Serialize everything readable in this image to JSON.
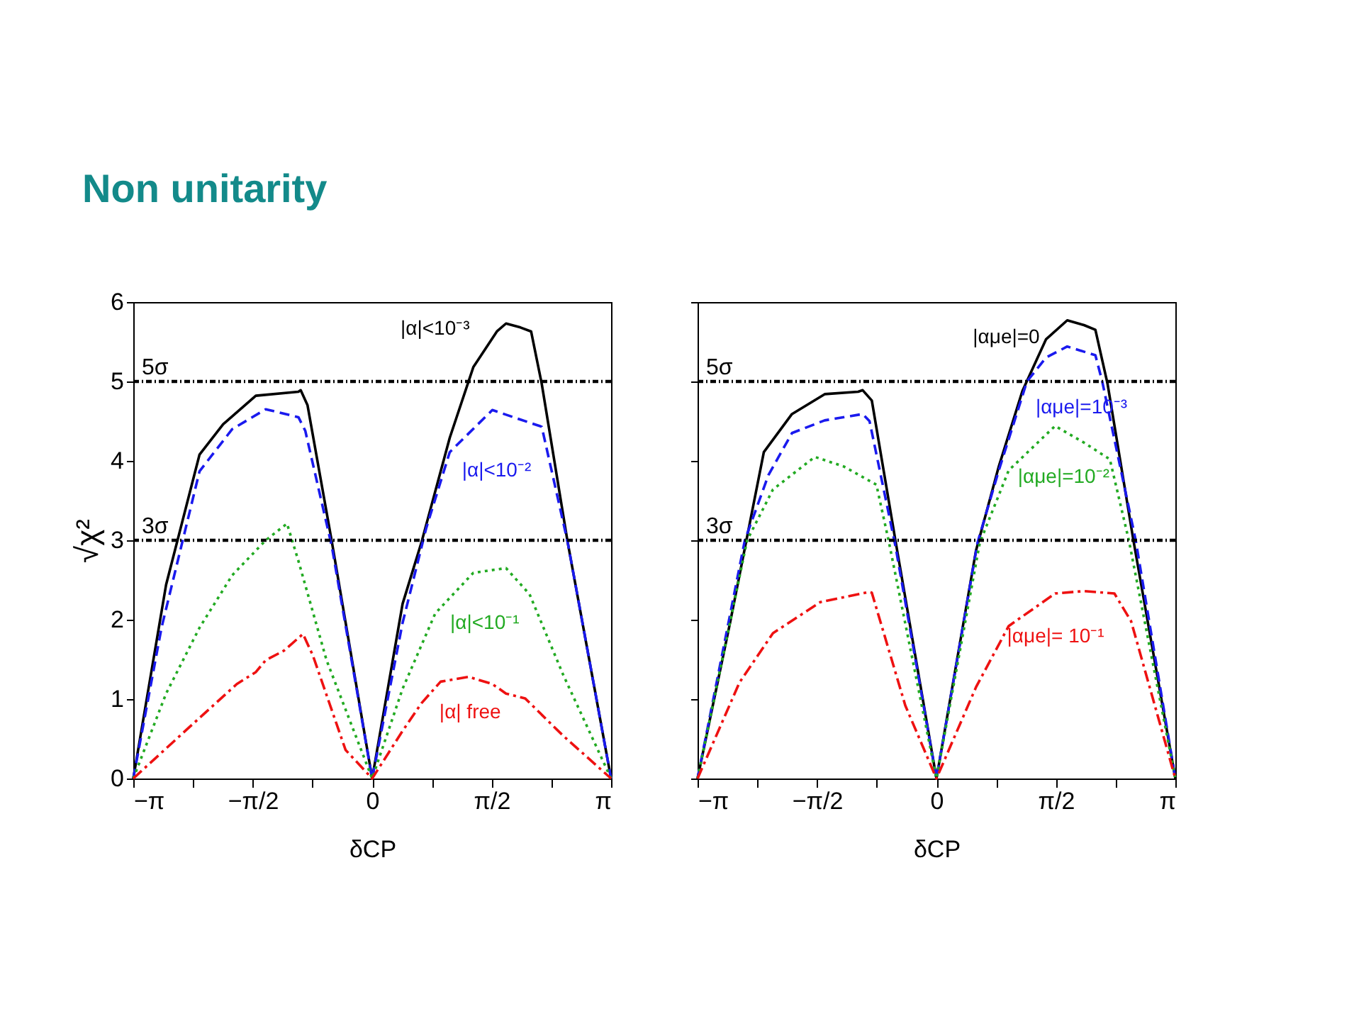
{
  "chart_data": [
    {
      "type": "line",
      "title": "Non unitarity",
      "xlabel": "δCP",
      "ylabel": "√χ²",
      "xlim": [
        -3.1416,
        3.1416
      ],
      "ylim": [
        0,
        6
      ],
      "xticks": [
        {
          "value": -3.1416,
          "label": "−π"
        },
        {
          "value": -2.3562,
          "label": null
        },
        {
          "value": -1.5708,
          "label": "−π/2"
        },
        {
          "value": -0.7854,
          "label": null
        },
        0,
        {
          "value": 0.7854,
          "label": null
        },
        {
          "value": 1.5708,
          "label": "π/2"
        },
        {
          "value": 2.3562,
          "label": null
        },
        {
          "value": 3.1416,
          "label": "π"
        }
      ],
      "yticks": [
        0,
        1,
        2,
        3,
        4,
        5,
        6
      ],
      "grid": false,
      "x": [
        -3.1416,
        -2.71,
        -2.27,
        -1.96,
        -1.53,
        -0.97,
        -0.94,
        -0.85,
        -0.53,
        0,
        0.4,
        0.65,
        1.02,
        1.33,
        1.64,
        1.76,
        1.95,
        2.09,
        2.23,
        2.57,
        3.1416
      ],
      "series": [
        {
          "name": "|α|<10⁻³",
          "color": "#000000",
          "line_style": "solid",
          "values": [
            0,
            2.44,
            4.08,
            4.46,
            4.82,
            4.87,
            4.89,
            4.7,
            2.98,
            0,
            2.2,
            2.98,
            4.29,
            5.18,
            5.63,
            5.73,
            5.68,
            5.63,
            4.97,
            2.98,
            0
          ]
        },
        {
          "name": "|α|<10⁻²",
          "color": "#1a1aee",
          "line_style": "dashed",
          "x": [
            -3.1416,
            -2.77,
            -2.27,
            -1.84,
            -1.4,
            -0.97,
            -0.88,
            -0.53,
            0,
            0.4,
            0.71,
            1.02,
            1.58,
            1.95,
            2.23,
            2.57,
            3.1416
          ],
          "values": [
            0,
            1.9,
            3.87,
            4.4,
            4.65,
            4.55,
            4.38,
            2.92,
            0,
            1.96,
            3.15,
            4.11,
            4.64,
            4.52,
            4.43,
            2.98,
            0
          ]
        },
        {
          "name": "|α|<10⁻¹",
          "color": "#22aa22",
          "line_style": "dotted",
          "x": [
            -3.1416,
            -2.71,
            -2.27,
            -1.84,
            -1.4,
            -1.12,
            -0.97,
            -0.6,
            0,
            0.4,
            0.83,
            1.33,
            1.76,
            2.07,
            2.51,
            3.1416
          ],
          "values": [
            0,
            1.07,
            1.9,
            2.56,
            3.0,
            3.21,
            2.74,
            1.49,
            0,
            1.13,
            2.08,
            2.59,
            2.65,
            2.32,
            1.31,
            0
          ]
        },
        {
          "name": "|α| free",
          "color": "#ee1111",
          "line_style": "dashdot",
          "x": [
            -3.1416,
            -2.4,
            -1.78,
            -1.53,
            -1.4,
            -1.16,
            -0.91,
            -0.78,
            -0.35,
            0,
            0.4,
            0.65,
            0.9,
            1.27,
            1.58,
            1.76,
            2.01,
            2.51,
            3.1416
          ],
          "values": [
            0,
            0.65,
            1.19,
            1.34,
            1.49,
            1.61,
            1.82,
            1.55,
            0.36,
            0,
            0.6,
            0.95,
            1.22,
            1.28,
            1.19,
            1.07,
            1.01,
            0.54,
            0
          ]
        }
      ],
      "ref_lines": [
        {
          "axis": "y",
          "value": 5,
          "label": "5σ"
        },
        {
          "axis": "y",
          "value": 3,
          "label": "3σ"
        }
      ]
    },
    {
      "type": "line",
      "xlabel": "δCP",
      "xlim": [
        -3.1416,
        3.1416
      ],
      "ylim": [
        0,
        6
      ],
      "xticks": [
        {
          "value": -3.1416,
          "label": "−π"
        },
        {
          "value": -2.3562,
          "label": null
        },
        {
          "value": -1.5708,
          "label": "−π/2"
        },
        {
          "value": -0.7854,
          "label": null
        },
        0,
        {
          "value": 0.7854,
          "label": null
        },
        {
          "value": 1.5708,
          "label": "π/2"
        },
        {
          "value": 2.3562,
          "label": null
        },
        {
          "value": 3.1416,
          "label": "π"
        }
      ],
      "yticks": [
        0,
        1,
        2,
        3,
        4,
        5,
        6
      ],
      "tick_labels": "x",
      "grid": false,
      "series": [
        {
          "name": "|αμe|=0",
          "color": "#000000",
          "line_style": "solid",
          "x": [
            -3.1416,
            -2.71,
            -2.27,
            -1.9,
            -1.47,
            -1.03,
            -0.97,
            -0.85,
            -0.54,
            0,
            0.52,
            0.82,
            1.13,
            1.44,
            1.72,
            1.94,
            2.09,
            2.25,
            2.59,
            3.1416
          ],
          "values": [
            0,
            1.98,
            4.11,
            4.59,
            4.84,
            4.87,
            4.89,
            4.76,
            3.0,
            0,
            2.87,
            3.93,
            4.88,
            5.53,
            5.77,
            5.71,
            5.65,
            4.97,
            3.0,
            0
          ]
        },
        {
          "name": "|αμe|=10⁻³",
          "color": "#1a1aee",
          "line_style": "dashed",
          "x": [
            -3.1416,
            -2.52,
            -2.21,
            -1.9,
            -1.47,
            -0.97,
            -0.88,
            -0.54,
            0,
            0.54,
            0.82,
            1.19,
            1.44,
            1.72,
            2.09,
            2.18,
            2.62,
            3.1416
          ],
          "values": [
            0,
            3.0,
            3.82,
            4.35,
            4.51,
            4.59,
            4.5,
            2.93,
            0,
            2.97,
            3.88,
            5.0,
            5.3,
            5.44,
            5.33,
            5.0,
            3.0,
            0
          ]
        },
        {
          "name": "|αμe|=10⁻²",
          "color": "#22aa22",
          "line_style": "dotted",
          "x": [
            -3.1416,
            -2.49,
            -2.15,
            -1.6,
            -1.22,
            -0.79,
            -0.63,
            0,
            0.57,
            0.95,
            1.56,
            1.94,
            2.28,
            2.53,
            3.1416
          ],
          "values": [
            0,
            3.0,
            3.64,
            4.05,
            3.93,
            3.7,
            3.0,
            0,
            2.97,
            3.88,
            4.44,
            4.23,
            4.02,
            3.0,
            0
          ]
        },
        {
          "name": "|αμe|= 10⁻¹",
          "color": "#ee1111",
          "line_style": "dashdot",
          "x": [
            -3.1416,
            -2.59,
            -2.15,
            -1.53,
            -0.88,
            -0.85,
            -0.41,
            0,
            0.52,
            0.95,
            1.56,
            1.94,
            2.34,
            2.56,
            3.1416
          ],
          "values": [
            0,
            1.21,
            1.83,
            2.22,
            2.35,
            2.34,
            0.92,
            0,
            1.15,
            1.92,
            2.33,
            2.36,
            2.33,
            1.98,
            0
          ]
        }
      ],
      "ref_lines": [
        {
          "axis": "y",
          "value": 5,
          "label": "5σ"
        },
        {
          "axis": "y",
          "value": 3,
          "label": "3σ"
        }
      ]
    }
  ]
}
